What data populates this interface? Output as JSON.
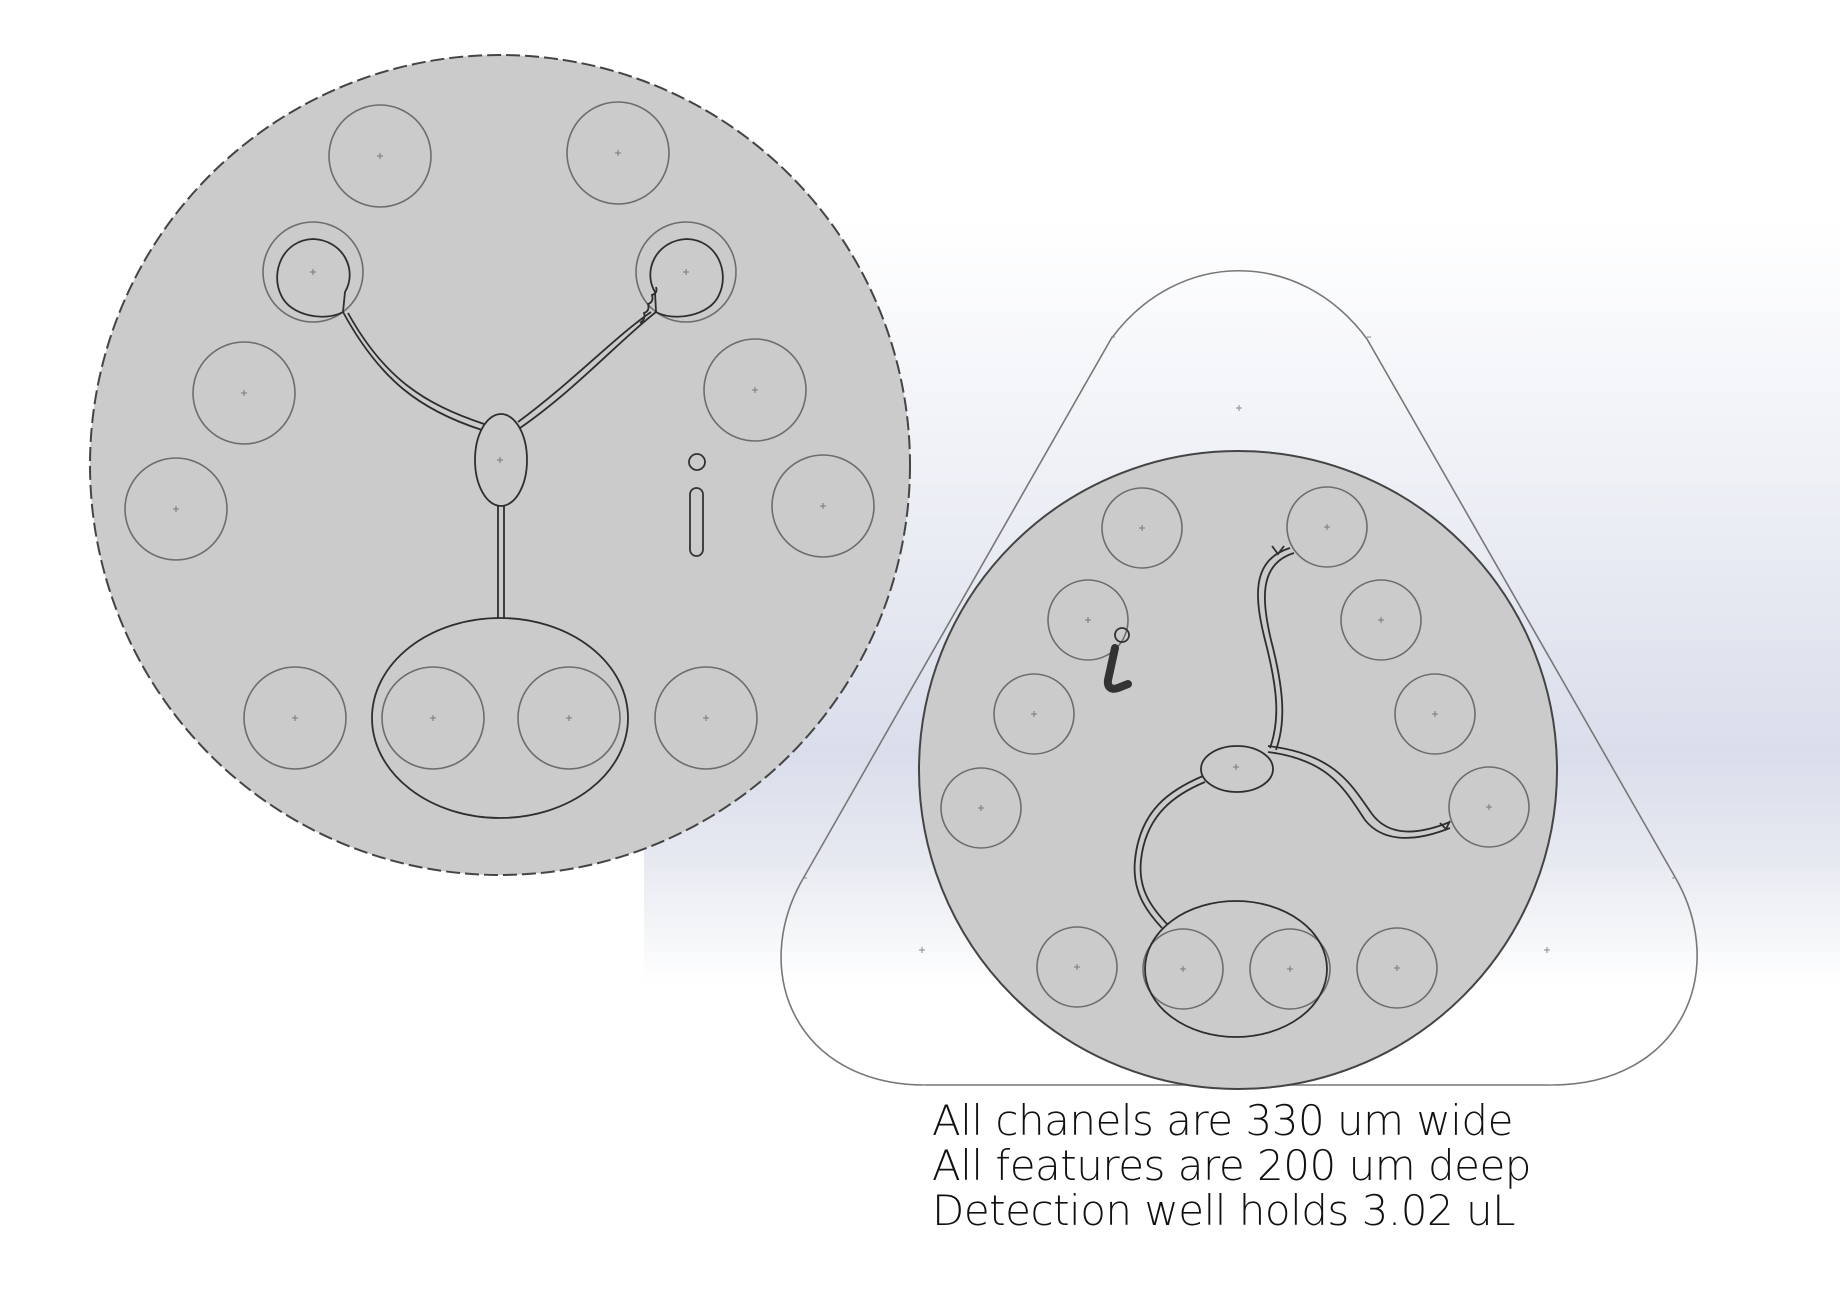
{
  "colors": {
    "disk_fill": "#cbcbcb",
    "outline": "#444444",
    "well_outline": "#6d6d6d",
    "channel": "#2e2e2e",
    "holder_outline": "#777777",
    "text": "#111111"
  },
  "notes": {
    "line1": "All chanels are 330 um wide",
    "line2": "All features are 200 um deep",
    "line3": "Detection well holds 3.02 uL"
  },
  "icons": {
    "info_mark": "info-i-glyph"
  }
}
